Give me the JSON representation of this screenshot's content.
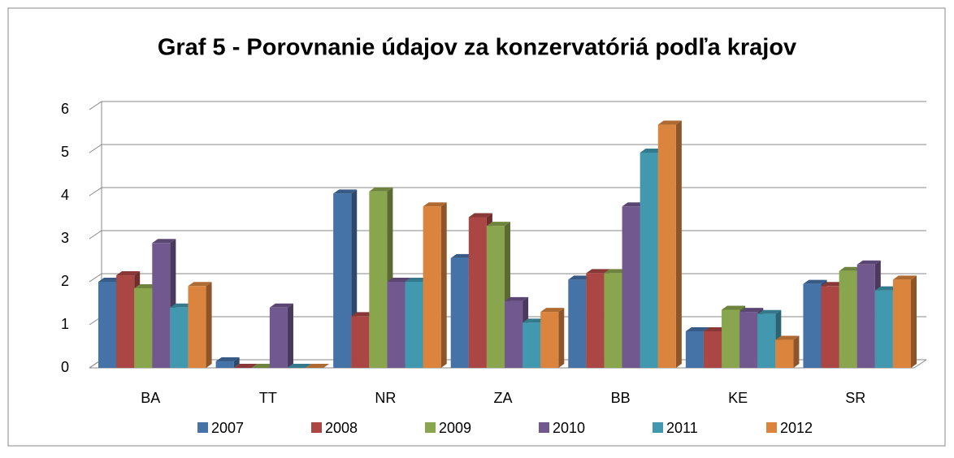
{
  "chart_data": {
    "type": "bar3d",
    "title": "Graf  5 - Porovnanie údajov za konzervatóriá podľa krajov",
    "categories": [
      "BA",
      "TT",
      "NR",
      "ZA",
      "BB",
      "KE",
      "SR"
    ],
    "series": [
      {
        "name": "2007",
        "color": "#4572a7",
        "values": [
          2.0,
          0.15,
          4.05,
          2.55,
          2.05,
          0.85,
          1.95
        ]
      },
      {
        "name": "2008",
        "color": "#aa4643",
        "values": [
          2.15,
          0,
          1.2,
          3.5,
          2.2,
          0.85,
          1.9
        ]
      },
      {
        "name": "2009",
        "color": "#89a54e",
        "values": [
          1.85,
          0,
          4.1,
          3.3,
          2.2,
          1.35,
          2.25
        ]
      },
      {
        "name": "2010",
        "color": "#71588f",
        "values": [
          2.9,
          1.4,
          2.0,
          1.55,
          3.75,
          1.3,
          2.4
        ]
      },
      {
        "name": "2011",
        "color": "#4198af",
        "values": [
          1.4,
          0,
          2.0,
          1.05,
          5.0,
          1.25,
          1.8
        ]
      },
      {
        "name": "2012",
        "color": "#db843d",
        "values": [
          1.9,
          0,
          3.75,
          1.3,
          5.65,
          0.65,
          2.05
        ]
      }
    ],
    "ylim": [
      0,
      6
    ],
    "yticks": [
      0,
      1,
      2,
      3,
      4,
      5,
      6
    ],
    "grid": true,
    "legend": "bottom"
  }
}
